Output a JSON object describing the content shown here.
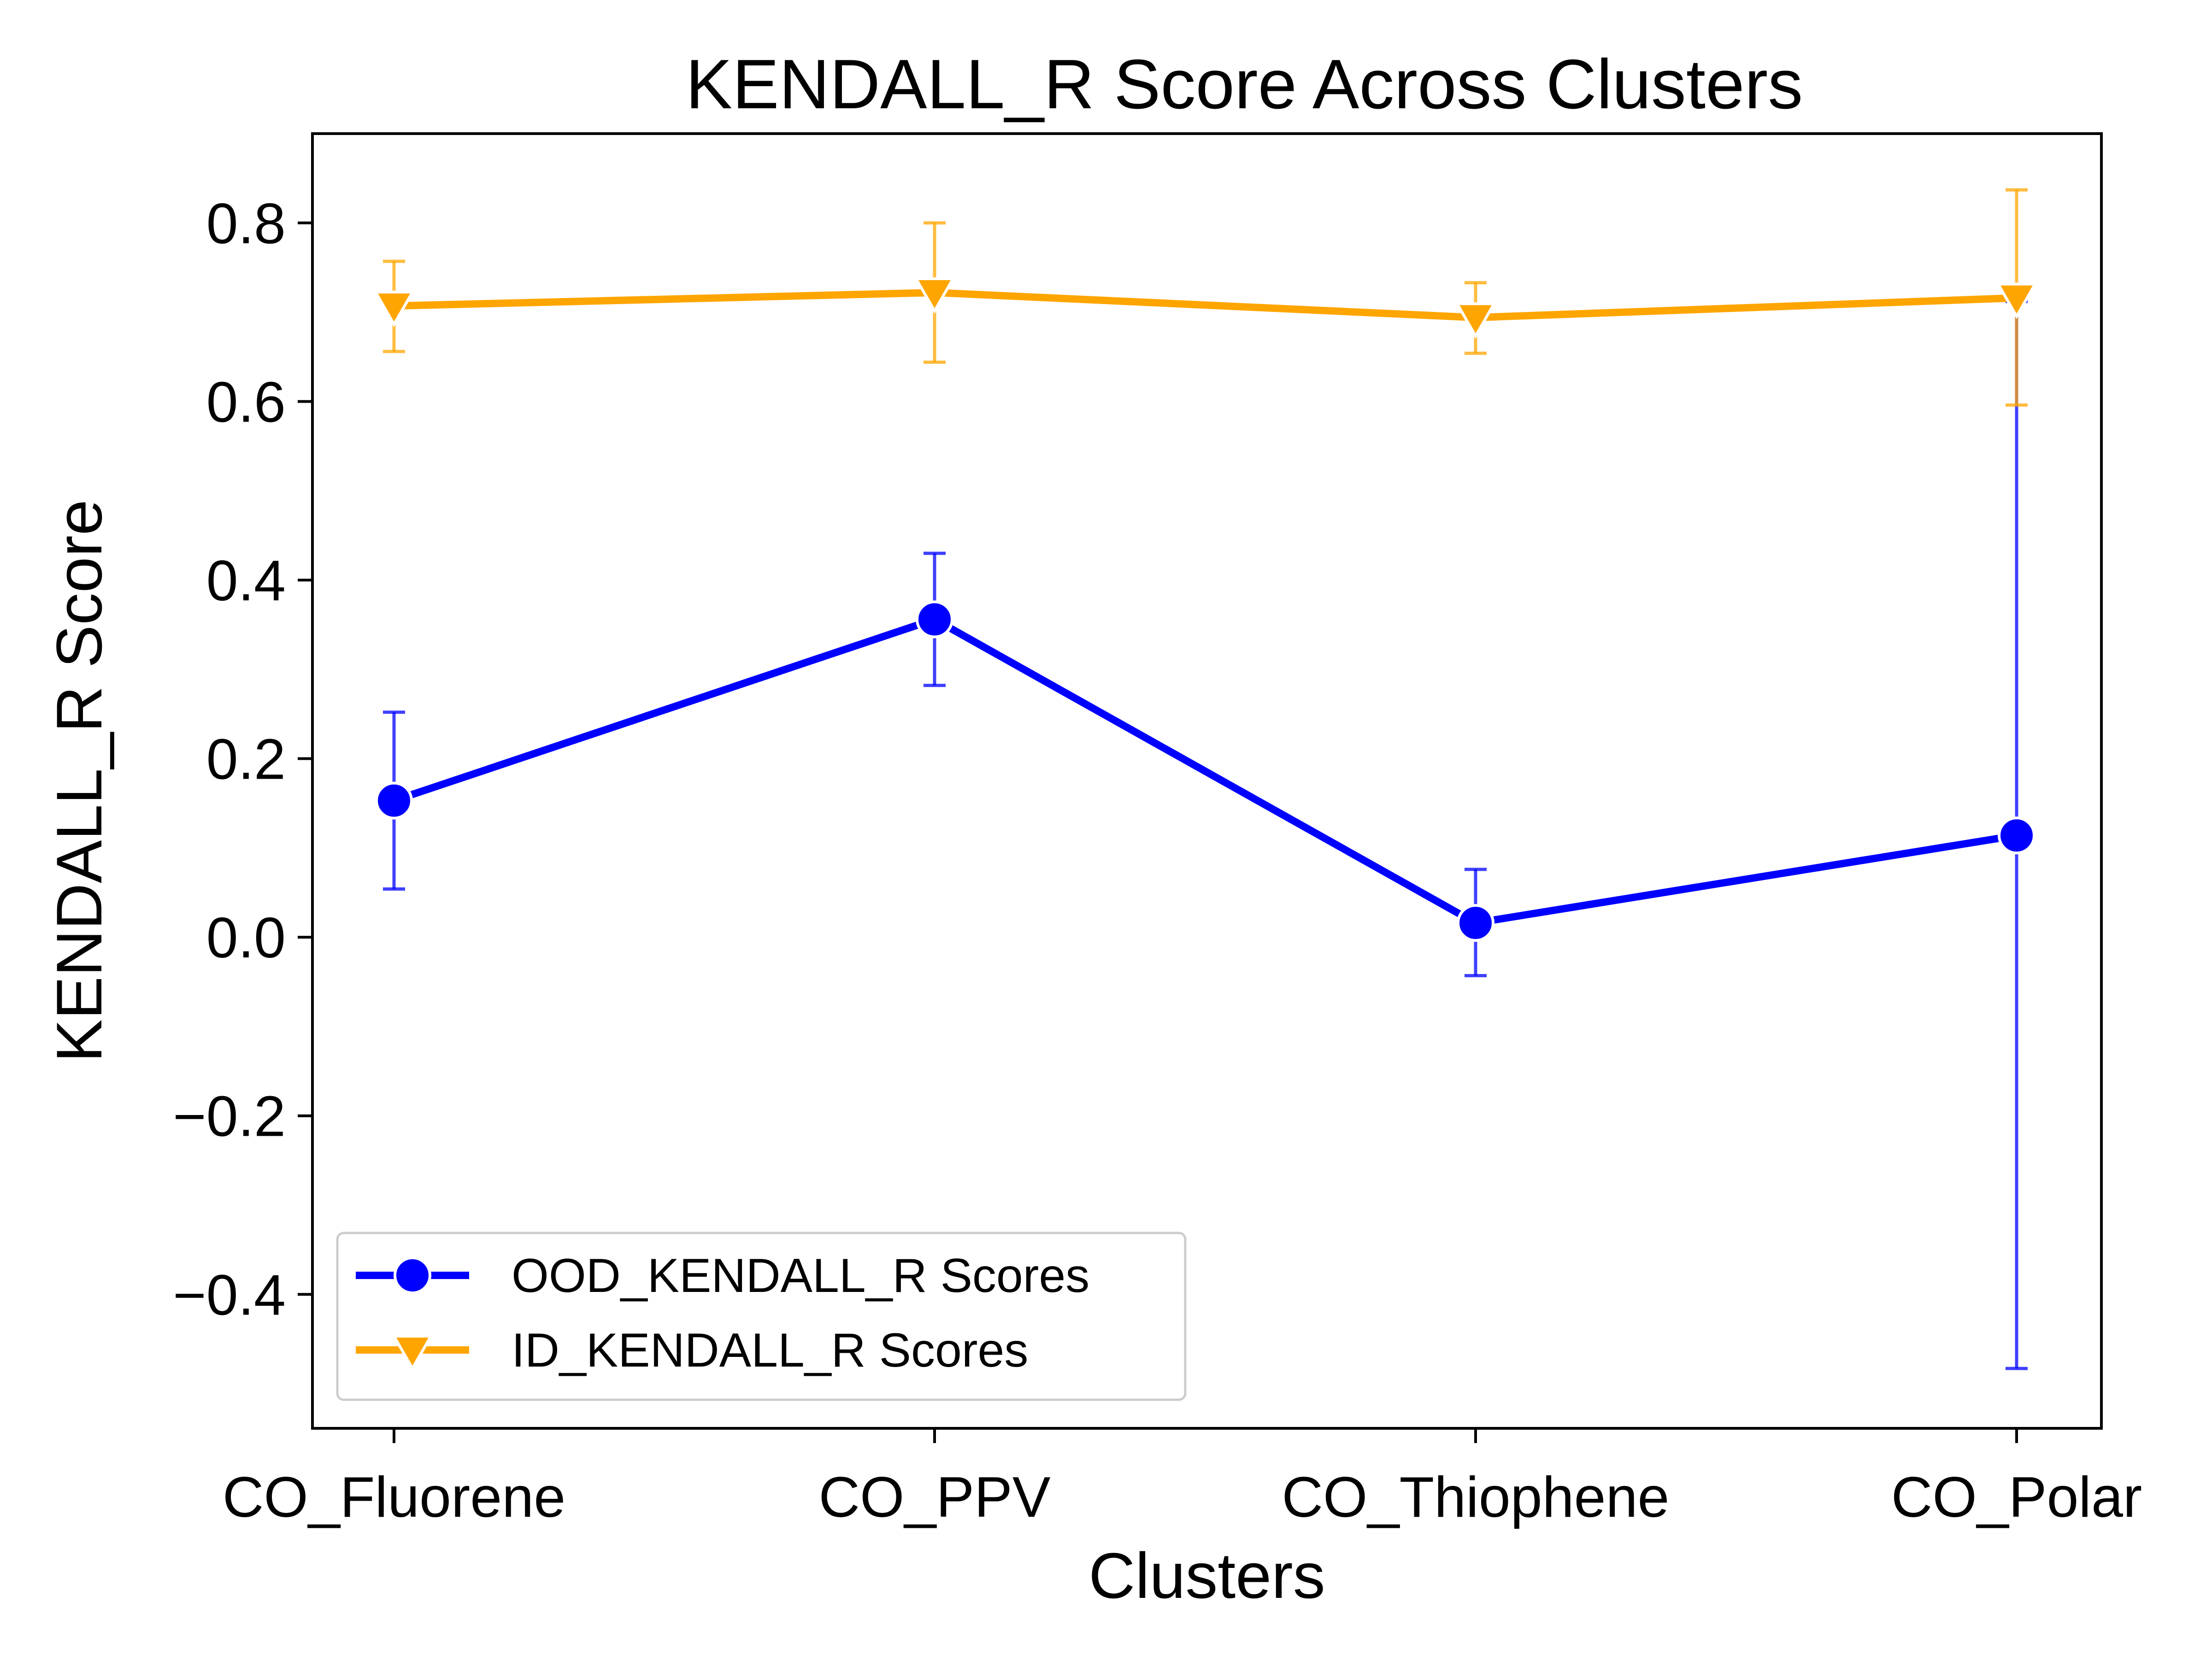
{
  "chart_data": {
    "type": "line",
    "title": "KENDALL_R Score Across Clusters",
    "xlabel": "Clusters",
    "ylabel": "KENDALL_R Score",
    "categories": [
      "CO_Fluorene",
      "CO_PPV",
      "CO_Thiophene",
      "CO_Polar"
    ],
    "ylim": [
      -0.55,
      0.9
    ],
    "yticks": [
      -0.4,
      -0.2,
      0.0,
      0.2,
      0.4,
      0.6,
      0.8
    ],
    "ytick_labels": [
      "−0.4",
      "−0.2",
      "0.0",
      "0.2",
      "0.4",
      "0.6",
      "0.8"
    ],
    "grid": false,
    "legend_position": "lower-left",
    "series": [
      {
        "name": "OOD_KENDALL_R Scores",
        "color": "#0000ff",
        "marker": "circle",
        "values": [
          0.153,
          0.356,
          0.016,
          0.114
        ],
        "error_low": [
          0.054,
          0.282,
          -0.043,
          -0.483
        ],
        "error_high": [
          0.252,
          0.43,
          0.076,
          0.712
        ]
      },
      {
        "name": "ID_KENDALL_R Scores",
        "color": "#ffa500",
        "marker": "triangle-down",
        "values": [
          0.707,
          0.722,
          0.694,
          0.716
        ],
        "error_low": [
          0.656,
          0.644,
          0.654,
          0.596
        ],
        "error_high": [
          0.757,
          0.8,
          0.733,
          0.837
        ]
      }
    ]
  }
}
